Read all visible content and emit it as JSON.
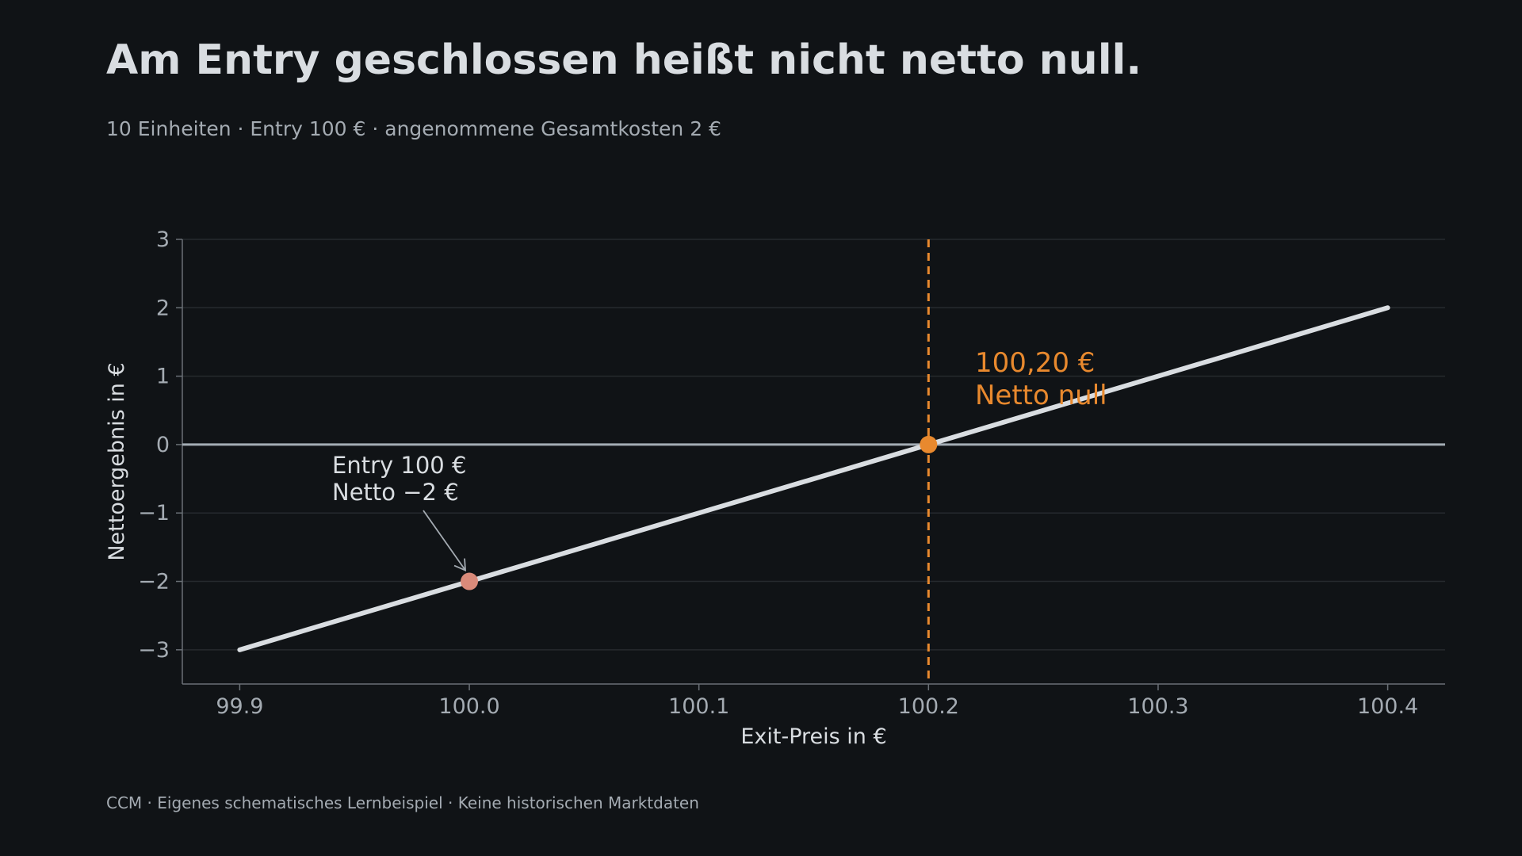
{
  "header": {
    "title": "Am Entry geschlossen heißt nicht netto null.",
    "subtitle": "10 Einheiten · Entry 100 € · angenommene Gesamtkosten 2 €"
  },
  "footer": {
    "text": "CCM · Eigenes schematisches Lernbeispiel · Keine historischen Marktdaten"
  },
  "colors": {
    "background": "#101316",
    "line": "#d9dde1",
    "accent": "#e8892e",
    "entry_point": "#d98a7a",
    "zero_line": "#a4adb5",
    "grid": "#262a2e"
  },
  "chart_data": {
    "type": "line",
    "xlabel": "Exit-Preis in €",
    "ylabel": "Nettoergebnis in €",
    "xlim": [
      99.875,
      100.425
    ],
    "ylim": [
      -3.5,
      3
    ],
    "x_ticks": [
      99.9,
      100.0,
      100.1,
      100.2,
      100.3,
      100.4
    ],
    "x_tick_labels": [
      "99.9",
      "100.0",
      "100.1",
      "100.2",
      "100.3",
      "100.4"
    ],
    "y_ticks": [
      3,
      2,
      1,
      0,
      -1,
      -2,
      -3
    ],
    "y_tick_labels": [
      "3",
      "2",
      "1",
      "0",
      "−1",
      "−2",
      "−3"
    ],
    "grid": "horizontal",
    "series": [
      {
        "x": [
          99.9,
          100.4
        ],
        "y": [
          -3,
          2
        ]
      }
    ],
    "breakeven": {
      "x": 100.2,
      "y": 0,
      "label_line1": "100,20 €",
      "label_line2": "Netto null"
    },
    "entry": {
      "x": 100.0,
      "y": -2,
      "label_line1": "Entry 100 €",
      "label_line2": "Netto −2 €"
    }
  }
}
